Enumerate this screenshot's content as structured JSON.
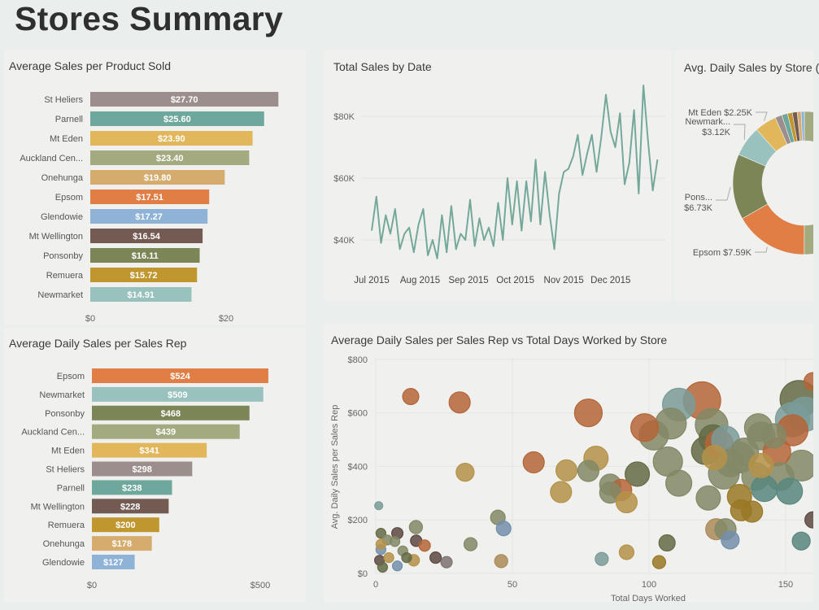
{
  "page": {
    "title": "Stores Summary"
  },
  "store_colors": {
    "Epsom": "#e07e45",
    "Newmarket": "#99c2be",
    "Ponsonby": "#7b8556",
    "Auckland Cen...": "#a3aa80",
    "Mt Eden": "#e2b65a",
    "St Heliers": "#9c8e8d",
    "Parnell": "#6ea89c",
    "Mt Wellington": "#735a52",
    "Remuera": "#c0962e",
    "Onehunga": "#d6ac6e",
    "Glendowie": "#8fb3d6"
  },
  "chart_data": [
    {
      "id": "avg-sales-per-product",
      "type": "bar",
      "orientation": "horizontal",
      "title": "Average Sales per Product Sold",
      "categories": [
        "St Heliers",
        "Parnell",
        "Mt Eden",
        "Auckland Cen...",
        "Onehunga",
        "Epsom",
        "Glendowie",
        "Mt Wellington",
        "Ponsonby",
        "Remuera",
        "Newmarket"
      ],
      "values": [
        27.7,
        25.6,
        23.9,
        23.4,
        19.8,
        17.51,
        17.27,
        16.54,
        16.11,
        15.72,
        14.91
      ],
      "data_labels": [
        "$27.70",
        "$25.60",
        "$23.90",
        "$23.40",
        "$19.80",
        "$17.51",
        "$17.27",
        "$16.54",
        "$16.11",
        "$15.72",
        "$14.91"
      ],
      "ticks": [
        {
          "value": 0,
          "label": "$0"
        },
        {
          "value": 20,
          "label": "$20"
        }
      ],
      "xlim": [
        0,
        30
      ]
    },
    {
      "id": "avg-daily-sales-per-rep",
      "type": "bar",
      "orientation": "horizontal",
      "title": "Average Daily Sales per Sales Rep",
      "categories": [
        "Epsom",
        "Newmarket",
        "Ponsonby",
        "Auckland Cen...",
        "Mt Eden",
        "St Heliers",
        "Parnell",
        "Mt Wellington",
        "Remuera",
        "Onehunga",
        "Glendowie"
      ],
      "values": [
        524,
        509,
        468,
        439,
        341,
        298,
        238,
        228,
        200,
        178,
        127
      ],
      "data_labels": [
        "$524",
        "$509",
        "$468",
        "$439",
        "$341",
        "$298",
        "$238",
        "$228",
        "$200",
        "$178",
        "$127"
      ],
      "ticks": [
        {
          "value": 0,
          "label": "$0"
        },
        {
          "value": 500,
          "label": "$500"
        }
      ],
      "xlim": [
        0,
        550
      ]
    },
    {
      "id": "total-sales-by-date",
      "type": "line",
      "title": "Total Sales by Date",
      "color": "#74a89a",
      "x": [
        "2015-07-01",
        "2015-07-04",
        "2015-07-07",
        "2015-07-10",
        "2015-07-13",
        "2015-07-16",
        "2015-07-19",
        "2015-07-22",
        "2015-07-25",
        "2015-07-28",
        "2015-07-31",
        "2015-08-03",
        "2015-08-06",
        "2015-08-09",
        "2015-08-12",
        "2015-08-15",
        "2015-08-18",
        "2015-08-21",
        "2015-08-24",
        "2015-08-27",
        "2015-08-30",
        "2015-09-02",
        "2015-09-05",
        "2015-09-08",
        "2015-09-11",
        "2015-09-14",
        "2015-09-17",
        "2015-09-20",
        "2015-09-23",
        "2015-09-26",
        "2015-09-29",
        "2015-10-02",
        "2015-10-05",
        "2015-10-08",
        "2015-10-11",
        "2015-10-14",
        "2015-10-17",
        "2015-10-20",
        "2015-10-23",
        "2015-10-26",
        "2015-10-29",
        "2015-11-01",
        "2015-11-04",
        "2015-11-07",
        "2015-11-10",
        "2015-11-13",
        "2015-11-16",
        "2015-11-19",
        "2015-11-22",
        "2015-11-25",
        "2015-11-28",
        "2015-12-01",
        "2015-12-04",
        "2015-12-07",
        "2015-12-10",
        "2015-12-13",
        "2015-12-16",
        "2015-12-19",
        "2015-12-22",
        "2015-12-25",
        "2015-12-28",
        "2015-12-31"
      ],
      "y": [
        43000,
        54000,
        39000,
        48000,
        42000,
        50000,
        37000,
        42000,
        44000,
        36000,
        45000,
        50000,
        35000,
        40000,
        34000,
        48000,
        36000,
        51000,
        37000,
        42000,
        40000,
        53000,
        38000,
        47000,
        40000,
        44000,
        38000,
        52000,
        40000,
        60000,
        45000,
        59000,
        43000,
        59000,
        46000,
        66000,
        45000,
        62000,
        48000,
        37000,
        55000,
        62000,
        63000,
        67000,
        74000,
        61000,
        68000,
        74000,
        62000,
        73000,
        87000,
        75000,
        70000,
        81000,
        58000,
        65000,
        82000,
        55000,
        90000,
        72000,
        56000,
        66000
      ],
      "yticks": [
        {
          "value": 40000,
          "label": "$40K"
        },
        {
          "value": 60000,
          "label": "$60K"
        },
        {
          "value": 80000,
          "label": "$80K"
        }
      ],
      "xticks": [
        {
          "value": "2015-07-01",
          "label": "Jul 2015"
        },
        {
          "value": "2015-08-01",
          "label": "Aug 2015"
        },
        {
          "value": "2015-09-01",
          "label": "Sep 2015"
        },
        {
          "value": "2015-10-01",
          "label": "Oct 2015"
        },
        {
          "value": "2015-11-01",
          "label": "Nov 2015"
        },
        {
          "value": "2015-12-01",
          "label": "Dec 2015"
        }
      ],
      "grid": true
    },
    {
      "id": "avg-daily-sales-by-store",
      "type": "pie",
      "donut": true,
      "title": "Avg. Daily Sales by Store (",
      "categories": [
        "Auckland Cen...",
        "Epsom",
        "Ponsonby",
        "Newmarket",
        "Mt Eden",
        "St Heliers",
        "Parnell",
        "Remuera",
        "Mt Wellington",
        "Onehunga",
        "Glendowie"
      ],
      "values": [
        22750,
        7590,
        6730,
        3120,
        2250,
        700,
        600,
        500,
        500,
        400,
        330
      ],
      "data_labels": [
        {
          "store": "Mt Eden",
          "name": "Mt Eden",
          "value": "$2.25K"
        },
        {
          "store": "Newmarket",
          "name": "Newmark...",
          "value": "$3.12K"
        },
        {
          "store": "Ponsonby",
          "name": "Pons...",
          "value": "$6.73K"
        },
        {
          "store": "Epsom",
          "name": "Epsom",
          "value": "$7.59K"
        }
      ]
    },
    {
      "id": "sales-rep-vs-days-worked",
      "type": "scatter",
      "bubble": true,
      "title": "Average Daily Sales per Sales Rep vs Total Days Worked by Store",
      "xlabel": "Total Days Worked",
      "ylabel": "Avg. Daily Sales per Sales Rep",
      "xticks": [
        {
          "value": 0,
          "label": "0"
        },
        {
          "value": 50,
          "label": "50"
        },
        {
          "value": 100,
          "label": "100"
        },
        {
          "value": 150,
          "label": "150"
        }
      ],
      "yticks": [
        {
          "value": 0,
          "label": "$0"
        },
        {
          "value": 200,
          "label": "$200"
        },
        {
          "value": 400,
          "label": "$400"
        },
        {
          "value": 600,
          "label": "$600"
        },
        {
          "value": 800,
          "label": "$800"
        }
      ],
      "grid": true,
      "points": [
        [
          12.8,
          661,
          4.9,
          "Epsom"
        ],
        [
          30.7,
          639,
          8.3,
          "Epsom"
        ],
        [
          77.8,
          600,
          14.3,
          "Epsom"
        ],
        [
          32.7,
          378,
          6,
          "Mt Eden"
        ],
        [
          57.8,
          415,
          8.3,
          "Epsom"
        ],
        [
          69.8,
          385,
          8.3,
          "Mt Eden"
        ],
        [
          80.6,
          430,
          11,
          "Mt Eden"
        ],
        [
          77.8,
          383,
          8.3,
          "Auckland Cen..."
        ],
        [
          67.8,
          304,
          8.3,
          "Mt Eden"
        ],
        [
          85.8,
          332,
          8.3,
          "Auckland Cen..."
        ],
        [
          89.8,
          312,
          8.3,
          "Epsom"
        ],
        [
          85.8,
          302,
          8.3,
          "Auckland Cen..."
        ],
        [
          91.8,
          266,
          8.3,
          "Mt Eden"
        ],
        [
          95.7,
          371,
          11,
          "Ponsonby"
        ],
        [
          98.4,
          545,
          14.3,
          "Epsom"
        ],
        [
          101.7,
          516,
          16,
          "Auckland Cen..."
        ],
        [
          108,
          560,
          17.8,
          "Auckland Cen..."
        ],
        [
          110.9,
          631,
          19.8,
          "Newmarket"
        ],
        [
          119.4,
          646,
          26,
          "Epsom"
        ],
        [
          122.9,
          555,
          19.8,
          "Auckland Cen..."
        ],
        [
          106.9,
          418,
          16,
          "Auckland Cen..."
        ],
        [
          110.9,
          337,
          12.6,
          "Auckland Cen..."
        ],
        [
          123.4,
          504,
          14.3,
          "Ponsonby"
        ],
        [
          120.6,
          459,
          14.3,
          "Ponsonby"
        ],
        [
          125.7,
          484,
          14.3,
          "Epsom"
        ],
        [
          128,
          499,
          14.3,
          "Newmarket"
        ],
        [
          124,
          433,
          11,
          "Mt Eden"
        ],
        [
          121.7,
          282,
          11,
          "Auckland Cen..."
        ],
        [
          127.4,
          373,
          17.8,
          "Auckland Cen..."
        ],
        [
          133,
          433,
          17.8,
          "Auckland Cen..."
        ],
        [
          141,
          514,
          14.3,
          "Auckland Cen..."
        ],
        [
          141,
          403,
          11,
          "Mt Eden"
        ],
        [
          146.8,
          454,
          14.3,
          "Epsom"
        ],
        [
          133.1,
          287,
          11,
          "Remuera"
        ],
        [
          133.7,
          236,
          8.3,
          "Remuera"
        ],
        [
          137.7,
          231,
          8.3,
          "Remuera"
        ],
        [
          124.6,
          165,
          8.3,
          "Onehunga"
        ],
        [
          128,
          165,
          8.3,
          "Auckland Cen..."
        ],
        [
          129.7,
          125,
          6,
          "Glendowie"
        ],
        [
          142.2,
          317,
          12.6,
          "Parnell"
        ],
        [
          151.4,
          307,
          12.6,
          "Parnell"
        ],
        [
          152.5,
          535,
          17.8,
          "Epsom"
        ],
        [
          152.5,
          575,
          21.8,
          "Newmarket"
        ],
        [
          154.8,
          651,
          26,
          "Ponsonby"
        ],
        [
          157,
          595,
          21.8,
          "Newmarket"
        ],
        [
          155.8,
          403,
          17.8,
          "Auckland Cen..."
        ],
        [
          155.7,
          121,
          6,
          "Parnell"
        ],
        [
          160,
          717,
          6,
          "Epsom"
        ],
        [
          160,
          200,
          4.9,
          "Mt Wellington"
        ],
        [
          135,
          454,
          14.3,
          "Auckland Cen..."
        ],
        [
          148,
          362,
          14.3,
          "Auckland Cen..."
        ],
        [
          139,
          362,
          14.3,
          "Auckland Cen..."
        ],
        [
          129.7,
          413,
          14.3,
          "Auckland Cen..."
        ],
        [
          140,
          545,
          14.3,
          "Auckland Cen..."
        ],
        [
          145.7,
          514,
          11,
          "Auckland Cen..."
        ],
        [
          1.1,
          253,
          1.2,
          "Newmarket"
        ],
        [
          44.7,
          209,
          4,
          "Auckland Cen..."
        ],
        [
          46.8,
          168,
          4,
          "Glendowie"
        ],
        [
          34.7,
          109,
          3.2,
          "Auckland Cen..."
        ],
        [
          45.9,
          46,
          3.2,
          "Onehunga"
        ],
        [
          14.7,
          173,
          3.2,
          "Auckland Cen..."
        ],
        [
          7.9,
          150,
          2.4,
          "Mt Wellington"
        ],
        [
          14.8,
          122,
          2.4,
          "Mt Wellington"
        ],
        [
          17.9,
          104,
          2.4,
          "Epsom"
        ],
        [
          13.9,
          49,
          2.4,
          "Mt Eden"
        ],
        [
          21.9,
          59,
          2.4,
          "Mt Wellington"
        ],
        [
          25.9,
          42,
          2.4,
          "St Heliers"
        ],
        [
          7.9,
          28,
          1.8,
          "Glendowie"
        ],
        [
          1.9,
          150,
          1.8,
          "Ponsonby"
        ],
        [
          4.2,
          125,
          1.8,
          "Auckland Cen..."
        ],
        [
          7,
          119,
          1.8,
          "Auckland Cen..."
        ],
        [
          1.9,
          89,
          1.8,
          "Glendowie"
        ],
        [
          1.4,
          49,
          1.8,
          "Mt Wellington"
        ],
        [
          2.5,
          23,
          1.8,
          "Ponsonby"
        ],
        [
          9.9,
          84,
          1.8,
          "Auckland Cen..."
        ],
        [
          4.8,
          59,
          1.8,
          "Mt Eden"
        ],
        [
          1.9,
          109,
          1.8,
          "Mt Eden"
        ],
        [
          11.3,
          59,
          1.8,
          "Ponsonby"
        ],
        [
          82.7,
          54,
          3.2,
          "Newmarket"
        ],
        [
          91.8,
          79,
          4,
          "Mt Eden"
        ],
        [
          106.6,
          114,
          4.9,
          "Ponsonby"
        ],
        [
          103.7,
          42,
          3.2,
          "Remuera"
        ]
      ]
    }
  ]
}
